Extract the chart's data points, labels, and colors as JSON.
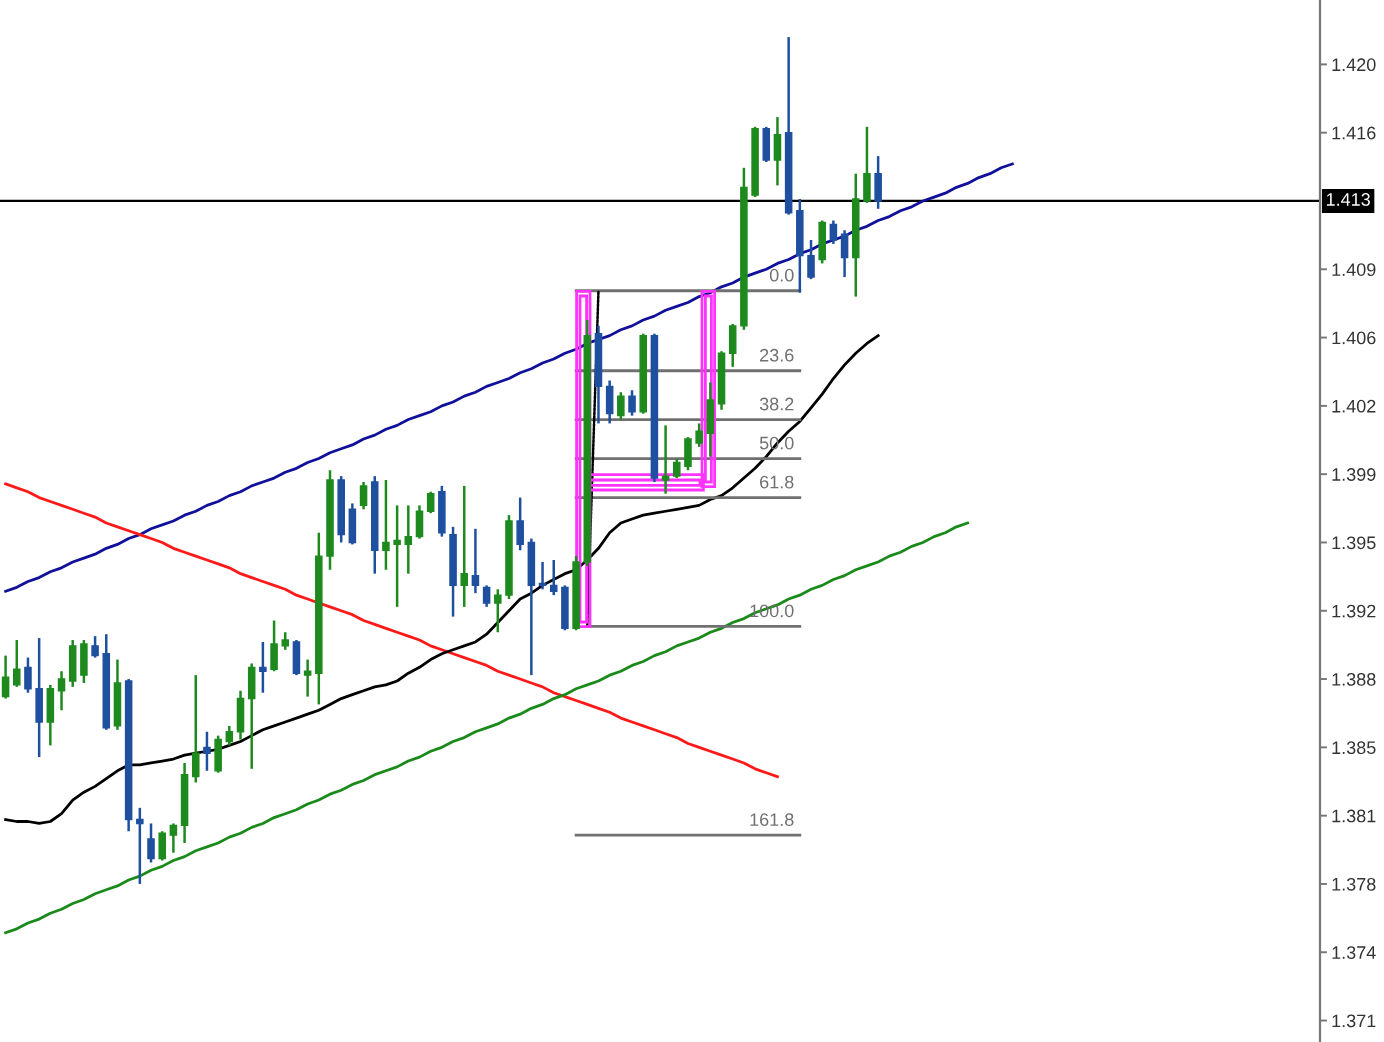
{
  "chart_data": {
    "type": "candlestick",
    "categories": [
      null,
      null,
      null,
      null,
      null,
      null,
      null,
      null,
      null,
      null,
      null,
      null,
      null,
      null,
      null,
      null,
      null,
      null,
      null,
      null,
      null,
      null,
      null,
      null,
      null,
      null,
      null,
      null,
      null,
      null,
      null,
      null,
      null,
      null,
      null,
      null,
      null,
      null,
      null,
      null,
      null,
      null,
      null,
      null,
      null,
      null,
      null,
      null,
      null,
      null,
      null,
      null,
      null,
      null,
      null,
      null,
      null,
      null,
      null,
      null,
      null,
      null,
      null,
      null,
      null,
      null,
      null,
      null,
      null,
      null,
      null,
      null,
      null,
      null,
      null,
      null,
      null,
      null,
      null,
      null,
      null,
      null,
      null,
      null,
      null,
      null,
      null,
      null,
      null,
      null,
      null,
      null,
      null,
      null,
      null,
      null,
      null,
      null,
      null,
      null,
      null,
      null,
      null,
      null,
      null,
      null,
      null,
      null,
      null,
      null,
      null,
      null,
      null,
      null,
      null,
      null,
      null,
      null
    ],
    "ohlc": [
      [
        1.3876,
        1.3897,
        1.3875,
        1.3886
      ],
      [
        1.3882,
        1.3905,
        1.3881,
        1.389
      ],
      [
        1.3891,
        1.3896,
        1.3878,
        1.388
      ],
      [
        1.388,
        1.3906,
        1.3845,
        1.3863
      ],
      [
        1.3863,
        1.3882,
        1.3851,
        1.388
      ],
      [
        1.3879,
        1.3889,
        1.3869,
        1.3885
      ],
      [
        1.3884,
        1.3905,
        1.3881,
        1.3902
      ],
      [
        1.3887,
        1.3905,
        1.3883,
        1.3903
      ],
      [
        1.3902,
        1.3907,
        1.3896,
        1.3897
      ],
      [
        1.3898,
        1.3908,
        1.3859,
        1.386
      ],
      [
        1.3861,
        1.3895,
        1.3859,
        1.3883
      ],
      [
        1.3884,
        1.3885,
        1.3807,
        1.3813
      ],
      [
        1.3813,
        1.3819,
        1.378,
        1.3811
      ],
      [
        1.3803,
        1.3811,
        1.3791,
        1.3793
      ],
      [
        1.3793,
        1.3807,
        1.3792,
        1.3806
      ],
      [
        1.3805,
        1.3811,
        1.3796,
        1.381
      ],
      [
        1.381,
        1.3842,
        1.3801,
        1.3836
      ],
      [
        1.3835,
        1.3887,
        1.3832,
        1.3847
      ],
      [
        1.385,
        1.3858,
        1.3838,
        1.3847
      ],
      [
        1.3838,
        1.3856,
        1.3837,
        1.3854
      ],
      [
        1.3853,
        1.3861,
        1.3851,
        1.3858
      ],
      [
        1.3858,
        1.3879,
        1.3854,
        1.3875
      ],
      [
        1.3875,
        1.3893,
        1.3839,
        1.3891
      ],
      [
        1.3891,
        1.3904,
        1.3878,
        1.3889
      ],
      [
        1.389,
        1.3915,
        1.3889,
        1.3903
      ],
      [
        1.3902,
        1.3909,
        1.39,
        1.3905
      ],
      [
        1.3904,
        1.3905,
        1.3887,
        1.3888
      ],
      [
        1.3887,
        1.3895,
        1.3876,
        1.3889
      ],
      [
        1.3888,
        1.396,
        1.3872,
        1.3948
      ],
      [
        1.3948,
        1.3992,
        1.3941,
        1.3987
      ],
      [
        1.3987,
        1.3989,
        1.3955,
        1.3959
      ],
      [
        1.3972,
        1.3975,
        1.3954,
        1.3955
      ],
      [
        1.3974,
        1.3986,
        1.3972,
        1.3984
      ],
      [
        1.3986,
        1.3989,
        1.3939,
        1.3951
      ],
      [
        1.3951,
        1.3987,
        1.3941,
        1.3955
      ],
      [
        1.3954,
        1.3974,
        1.3922,
        1.3956
      ],
      [
        1.3954,
        1.3974,
        1.3939,
        1.3958
      ],
      [
        1.3958,
        1.3974,
        1.3957,
        1.3971
      ],
      [
        1.3971,
        1.3981,
        1.397,
        1.398
      ],
      [
        1.3981,
        1.3984,
        1.3958,
        1.396
      ],
      [
        1.3959,
        1.3963,
        1.3917,
        1.3933
      ],
      [
        1.3933,
        1.3984,
        1.3922,
        1.3939
      ],
      [
        1.3938,
        1.3962,
        1.3929,
        1.3933
      ],
      [
        1.3932,
        1.3933,
        1.3922,
        1.3924
      ],
      [
        1.3924,
        1.3931,
        1.3909,
        1.3928
      ],
      [
        1.3928,
        1.3969,
        1.3926,
        1.3966
      ],
      [
        1.3966,
        1.3978,
        1.3951,
        1.3954
      ],
      [
        1.3955,
        1.3957,
        1.3887,
        1.3933
      ],
      [
        1.3934,
        1.3945,
        1.3931,
        1.3933
      ],
      [
        1.3933,
        1.3946,
        1.3928,
        1.393
      ],
      [
        1.3932,
        1.3933,
        1.391,
        1.3911
      ],
      [
        1.3911,
        1.3948,
        1.391,
        1.3945
      ],
      [
        1.3945,
        1.4069,
        1.3943,
        1.4061
      ],
      [
        1.4062,
        1.4066,
        1.4016,
        1.4035
      ],
      [
        1.4035,
        1.4038,
        1.4016,
        1.4021
      ],
      [
        1.402,
        1.4032,
        1.4018,
        1.403
      ],
      [
        1.403,
        1.4033,
        1.402,
        1.4022
      ],
      [
        1.4022,
        1.4062,
        1.4021,
        1.4061
      ],
      [
        1.4061,
        1.4062,
        1.3986,
        1.3988
      ],
      [
        1.3987,
        1.4015,
        1.398,
        1.3989
      ],
      [
        1.3989,
        1.3998,
        1.3988,
        1.3996
      ],
      [
        1.3994,
        1.4009,
        1.3992,
        1.4008
      ],
      [
        1.4006,
        1.4016,
        1.4004,
        1.4012
      ],
      [
        1.4011,
        1.4037,
        1.3999,
        1.4028
      ],
      [
        1.4026,
        1.4053,
        1.4023,
        1.4052
      ],
      [
        1.4052,
        1.4067,
        1.4045,
        1.4066
      ],
      [
        1.4066,
        1.4147,
        1.4064,
        1.4137
      ],
      [
        1.4133,
        1.4168,
        1.4132,
        1.4167
      ],
      [
        1.4167,
        1.4168,
        1.415,
        1.4151
      ],
      [
        1.4151,
        1.4173,
        1.4138,
        1.4164
      ],
      [
        1.4165,
        1.4214,
        1.4123,
        1.4124
      ],
      [
        1.4125,
        1.4131,
        1.4083,
        1.4102
      ],
      [
        1.4102,
        1.411,
        1.409,
        1.4091
      ],
      [
        1.41,
        1.412,
        1.4098,
        1.4119
      ],
      [
        1.4118,
        1.412,
        1.4108,
        1.411
      ],
      [
        1.4113,
        1.4115,
        1.4091,
        1.4101
      ],
      [
        1.4101,
        1.4144,
        1.4081,
        1.4131
      ],
      [
        1.413,
        1.4168,
        1.4129,
        1.4144
      ],
      [
        1.4144,
        1.4153,
        1.4126,
        1.413
      ],
      null,
      null,
      null,
      null,
      null,
      null,
      null,
      null,
      null,
      null,
      null,
      null,
      null,
      null,
      null,
      null,
      null,
      null,
      null,
      null,
      null,
      null,
      null,
      null,
      null,
      null,
      null,
      null,
      null,
      null,
      null,
      null,
      null,
      null,
      null,
      null,
      null,
      null,
      null
    ],
    "colors": [
      "#1e8a1e",
      "#1e8a1e",
      "#1f4f9f",
      "#1f4f9f",
      "#1e8a1e",
      "#1e8a1e",
      "#1e8a1e",
      "#1e8a1e",
      "#1f4f9f",
      "#1f4f9f",
      "#1e8a1e",
      "#1f4f9f",
      "#1f4f9f",
      "#1f4f9f",
      "#1e8a1e",
      "#1e8a1e",
      "#1e8a1e",
      "#1e8a1e",
      "#1f4f9f",
      "#1e8a1e",
      "#1e8a1e",
      "#1e8a1e",
      "#1e8a1e",
      "#1f4f9f",
      "#1e8a1e",
      "#1e8a1e",
      "#1f4f9f",
      "#1e8a1e",
      "#1e8a1e",
      "#1e8a1e",
      "#1f4f9f",
      "#1f4f9f",
      "#1e8a1e",
      "#1f4f9f",
      "#1e8a1e",
      "#1e8a1e",
      "#1e8a1e",
      "#1e8a1e",
      "#1e8a1e",
      "#1f4f9f",
      "#1f4f9f",
      "#1e8a1e",
      "#1f4f9f",
      "#1f4f9f",
      "#1e8a1e",
      "#1e8a1e",
      "#1f4f9f",
      "#1f4f9f",
      "#1f4f9f",
      "#1f4f9f",
      "#1f4f9f",
      "#1e8a1e",
      "#1e8a1e",
      "#1f4f9f",
      "#1f4f9f",
      "#1e8a1e",
      "#1f4f9f",
      "#1e8a1e",
      "#1f4f9f",
      "#1e8a1e",
      "#1e8a1e",
      "#1e8a1e",
      "#1e8a1e",
      "#1e8a1e",
      "#1e8a1e",
      "#1e8a1e",
      "#1e8a1e",
      "#1e8a1e",
      "#1f4f9f",
      "#1e8a1e",
      "#1f4f9f",
      "#1f4f9f",
      "#1f4f9f",
      "#1e8a1e",
      "#1f4f9f",
      "#1f4f9f",
      "#1e8a1e",
      "#1e8a1e",
      "#1f4f9f",
      null,
      null,
      null,
      null,
      null,
      null,
      null,
      null,
      null,
      null,
      null,
      null,
      null,
      null,
      null,
      null,
      null,
      null,
      null,
      null,
      null,
      null,
      null,
      null,
      null,
      null,
      null,
      null,
      null,
      null,
      null,
      null,
      null,
      null,
      null,
      null,
      null,
      null,
      null
    ],
    "ylim": [
      1.3699,
      1.4233
    ],
    "yticks": [
      {
        "value": 1.371,
        "label": "1.371"
      },
      {
        "value": 1.3745,
        "label": "1.374"
      },
      {
        "value": 1.378,
        "label": "1.378"
      },
      {
        "value": 1.3815,
        "label": "1.381"
      },
      {
        "value": 1.385,
        "label": "1.385"
      },
      {
        "value": 1.3885,
        "label": "1.388"
      },
      {
        "value": 1.392,
        "label": "1.392"
      },
      {
        "value": 1.3955,
        "label": "1.395"
      },
      {
        "value": 1.399,
        "label": "1.399"
      },
      {
        "value": 1.4025,
        "label": "1.402"
      },
      {
        "value": 1.406,
        "label": "1.406"
      },
      {
        "value": 1.4095,
        "label": "1.409"
      },
      {
        "value": 1.4165,
        "label": "1.416"
      },
      {
        "value": 1.42,
        "label": "1.420"
      }
    ],
    "tick_labels": "y",
    "ref_lines": [
      {
        "axis": "y",
        "value": 1.413,
        "label": "1.413",
        "color": "#000000"
      }
    ],
    "series": [
      {
        "type": "line",
        "color": "#10109a",
        "values": [
          1.393,
          1.3932,
          1.3935,
          1.3937,
          1.394,
          1.3942,
          1.3945,
          1.3947,
          1.3949,
          1.3952,
          1.3954,
          1.3957,
          1.3959,
          1.3962,
          1.3964,
          1.3966,
          1.3969,
          1.3971,
          1.3974,
          1.3976,
          1.3979,
          1.3981,
          1.3984,
          1.3986,
          1.3988,
          1.3991,
          1.3993,
          1.3996,
          1.3998,
          1.4001,
          1.4003,
          1.4005,
          1.4008,
          1.401,
          1.4013,
          1.4015,
          1.4018,
          1.402,
          1.4022,
          1.4025,
          1.4027,
          1.403,
          1.4032,
          1.4035,
          1.4037,
          1.4039,
          1.4042,
          1.4044,
          1.4047,
          1.4049,
          1.4052,
          1.4054,
          1.4057,
          1.4059,
          1.4061,
          1.4064,
          1.4066,
          1.4069,
          1.4071,
          1.4074,
          1.4076,
          1.4078,
          1.4081,
          1.4083,
          1.4086,
          1.4088,
          1.4091,
          1.4093,
          1.4095,
          1.4098,
          1.41,
          1.4103,
          1.4105,
          1.4108,
          1.411,
          1.4112,
          1.4115,
          1.4117,
          1.412,
          1.4122,
          1.4125,
          1.4127,
          1.413,
          1.4132,
          1.4134,
          1.4137,
          1.4139,
          1.4142,
          1.4144,
          1.4147,
          1.4149,
          null,
          null,
          null,
          null,
          null,
          null,
          null,
          null,
          null,
          null,
          null,
          null,
          null,
          null,
          null,
          null,
          null,
          null,
          null,
          null,
          null,
          null,
          null,
          null,
          null,
          null,
          null
        ]
      },
      {
        "type": "line",
        "color": "#ff1a1a",
        "values": [
          1.3985,
          1.3983,
          1.3981,
          1.3978,
          1.3976,
          1.3974,
          1.3972,
          1.397,
          1.3968,
          1.3965,
          1.3963,
          1.3961,
          1.3959,
          1.3957,
          1.3955,
          1.3952,
          1.395,
          1.3948,
          1.3946,
          1.3944,
          1.3942,
          1.3939,
          1.3937,
          1.3935,
          1.3933,
          1.3931,
          1.3928,
          1.3926,
          1.3924,
          1.3922,
          1.392,
          1.3918,
          1.3915,
          1.3913,
          1.3911,
          1.3909,
          1.3907,
          1.3905,
          1.3902,
          1.39,
          1.3898,
          1.3896,
          1.3894,
          1.3892,
          1.3889,
          1.3887,
          1.3885,
          1.3883,
          1.3881,
          1.3878,
          1.3876,
          1.3874,
          1.3872,
          1.387,
          1.3868,
          1.3865,
          1.3863,
          1.3861,
          1.3859,
          1.3857,
          1.3855,
          1.3852,
          1.385,
          1.3848,
          1.3846,
          1.3844,
          1.3842,
          1.3839,
          1.3837,
          1.3835,
          null,
          null,
          null,
          null,
          null,
          null,
          null,
          null,
          null,
          null,
          null,
          null,
          null,
          null,
          null,
          null,
          null,
          null,
          null,
          null,
          null,
          null,
          null,
          null,
          null,
          null,
          null,
          null,
          null,
          null,
          null,
          null,
          null,
          null,
          null,
          null,
          null,
          null,
          null,
          null,
          null,
          null,
          null,
          null,
          null,
          null,
          null,
          null
        ]
      },
      {
        "type": "line",
        "color": "#1a8a1a",
        "values": [
          1.3755,
          1.3757,
          1.376,
          1.3762,
          1.3765,
          1.3767,
          1.377,
          1.3772,
          1.3775,
          1.3777,
          1.3779,
          1.3782,
          1.3784,
          1.3787,
          1.3789,
          1.3792,
          1.3794,
          1.3797,
          1.3799,
          1.3801,
          1.3804,
          1.3806,
          1.3809,
          1.3811,
          1.3814,
          1.3816,
          1.3818,
          1.3821,
          1.3823,
          1.3826,
          1.3828,
          1.3831,
          1.3833,
          1.3836,
          1.3838,
          1.384,
          1.3843,
          1.3845,
          1.3848,
          1.385,
          1.3853,
          1.3855,
          1.3858,
          1.386,
          1.3862,
          1.3865,
          1.3867,
          1.387,
          1.3872,
          1.3875,
          1.3877,
          1.388,
          1.3882,
          1.3884,
          1.3887,
          1.3889,
          1.3892,
          1.3894,
          1.3897,
          1.3899,
          1.3902,
          1.3904,
          1.3906,
          1.3909,
          1.3911,
          1.3914,
          1.3916,
          1.3919,
          1.3921,
          1.3923,
          1.3926,
          1.3928,
          1.3931,
          1.3933,
          1.3936,
          1.3938,
          1.3941,
          1.3943,
          1.3945,
          1.3948,
          1.395,
          1.3953,
          1.3955,
          1.3958,
          1.396,
          1.3963,
          1.3965,
          null,
          null,
          null,
          null,
          null,
          null,
          null,
          null,
          null,
          null,
          null,
          null,
          null,
          null,
          null,
          null,
          null,
          null,
          null,
          null,
          null,
          null,
          null,
          null,
          null,
          null,
          null,
          null,
          null,
          null,
          null
        ]
      },
      {
        "type": "line",
        "color": "#000000",
        "values": [
          1.3813,
          1.3812,
          1.3812,
          1.3811,
          1.3812,
          1.3816,
          1.3823,
          1.3827,
          1.383,
          1.3834,
          1.3838,
          1.3841,
          1.3841,
          1.3842,
          1.3843,
          1.3844,
          1.3846,
          1.3847,
          1.3848,
          1.3849,
          1.3851,
          1.3853,
          1.3856,
          1.3859,
          1.3861,
          1.3863,
          1.3865,
          1.3867,
          1.3869,
          1.3872,
          1.3875,
          1.3877,
          1.3879,
          1.3881,
          1.3882,
          1.3884,
          1.3888,
          1.3891,
          1.3895,
          1.3898,
          1.39,
          1.3902,
          1.3904,
          1.3908,
          1.3914,
          1.392,
          1.3926,
          1.3929,
          1.3933,
          1.3936,
          1.3939,
          1.3941,
          1.3946,
          1.3952,
          1.396,
          1.3965,
          1.3967,
          1.3969,
          1.397,
          1.3971,
          1.3972,
          1.3973,
          1.3974,
          1.3977,
          1.3979,
          1.3983,
          1.3988,
          1.3993,
          1.3999,
          1.4006,
          1.4012,
          1.4017,
          1.4024,
          1.4031,
          1.4039,
          1.4046,
          1.4052,
          1.4057,
          1.4061,
          null,
          null,
          null,
          null,
          null,
          null,
          null,
          null,
          null,
          null,
          null,
          null,
          null,
          null,
          null,
          null,
          null,
          null,
          null,
          null,
          null,
          null,
          null,
          null,
          null,
          null,
          null,
          null,
          null,
          null,
          null,
          null,
          null,
          null,
          null,
          null,
          null,
          null,
          null
        ]
      },
      {
        "type": "line",
        "name": "0.0",
        "color": "#707070",
        "values": [
          null,
          null,
          null,
          null,
          null,
          null,
          null,
          null,
          null,
          null,
          null,
          null,
          null,
          null,
          null,
          null,
          null,
          null,
          null,
          null,
          null,
          null,
          null,
          null,
          null,
          null,
          null,
          null,
          null,
          null,
          null,
          null,
          null,
          null,
          null,
          null,
          null,
          null,
          null,
          null,
          null,
          null,
          null,
          null,
          null,
          null,
          null,
          null,
          null,
          null,
          null,
          1.4084,
          1.4084,
          1.4084,
          1.4084,
          1.4084,
          1.4084,
          1.4084,
          1.4084,
          1.4084,
          1.4084,
          1.4084,
          1.4084,
          1.4084,
          1.4084,
          1.4084,
          1.4084,
          1.4084,
          1.4084,
          1.4084,
          1.4084,
          1.4084,
          null,
          null,
          null,
          null,
          null,
          null,
          null,
          null,
          null,
          null,
          null,
          null,
          null,
          null,
          null,
          null,
          null,
          null,
          null,
          null,
          null,
          null,
          null,
          null,
          null,
          null,
          null,
          null,
          null,
          null,
          null,
          null,
          null,
          null,
          null,
          null,
          null,
          null,
          null,
          null,
          null,
          null,
          null,
          null,
          null,
          null
        ]
      },
      {
        "type": "line",
        "name": "23.6",
        "color": "#707070",
        "values": [
          null,
          null,
          null,
          null,
          null,
          null,
          null,
          null,
          null,
          null,
          null,
          null,
          null,
          null,
          null,
          null,
          null,
          null,
          null,
          null,
          null,
          null,
          null,
          null,
          null,
          null,
          null,
          null,
          null,
          null,
          null,
          null,
          null,
          null,
          null,
          null,
          null,
          null,
          null,
          null,
          null,
          null,
          null,
          null,
          null,
          null,
          null,
          null,
          null,
          null,
          null,
          1.4043,
          1.4043,
          1.4043,
          1.4043,
          1.4043,
          1.4043,
          1.4043,
          1.4043,
          1.4043,
          1.4043,
          1.4043,
          1.4043,
          1.4043,
          1.4043,
          1.4043,
          1.4043,
          1.4043,
          1.4043,
          1.4043,
          1.4043,
          1.4043,
          null,
          null,
          null,
          null,
          null,
          null,
          null,
          null,
          null,
          null,
          null,
          null,
          null,
          null,
          null,
          null,
          null,
          null,
          null,
          null,
          null,
          null,
          null,
          null,
          null,
          null,
          null,
          null,
          null,
          null,
          null,
          null,
          null,
          null,
          null,
          null,
          null,
          null,
          null,
          null,
          null,
          null,
          null,
          null,
          null,
          null
        ]
      },
      {
        "type": "line",
        "name": "38.2",
        "color": "#707070",
        "values": [
          null,
          null,
          null,
          null,
          null,
          null,
          null,
          null,
          null,
          null,
          null,
          null,
          null,
          null,
          null,
          null,
          null,
          null,
          null,
          null,
          null,
          null,
          null,
          null,
          null,
          null,
          null,
          null,
          null,
          null,
          null,
          null,
          null,
          null,
          null,
          null,
          null,
          null,
          null,
          null,
          null,
          null,
          null,
          null,
          null,
          null,
          null,
          null,
          null,
          null,
          null,
          1.4018,
          1.4018,
          1.4018,
          1.4018,
          1.4018,
          1.4018,
          1.4018,
          1.4018,
          1.4018,
          1.4018,
          1.4018,
          1.4018,
          1.4018,
          1.4018,
          1.4018,
          1.4018,
          1.4018,
          1.4018,
          1.4018,
          1.4018,
          1.4018,
          null,
          null,
          null,
          null,
          null,
          null,
          null,
          null,
          null,
          null,
          null,
          null,
          null,
          null,
          null,
          null,
          null,
          null,
          null,
          null,
          null,
          null,
          null,
          null,
          null,
          null,
          null,
          null,
          null,
          null,
          null,
          null,
          null,
          null,
          null,
          null,
          null,
          null,
          null,
          null,
          null,
          null,
          null,
          null,
          null,
          null
        ]
      },
      {
        "type": "line",
        "name": "50.0",
        "color": "#707070",
        "values": [
          null,
          null,
          null,
          null,
          null,
          null,
          null,
          null,
          null,
          null,
          null,
          null,
          null,
          null,
          null,
          null,
          null,
          null,
          null,
          null,
          null,
          null,
          null,
          null,
          null,
          null,
          null,
          null,
          null,
          null,
          null,
          null,
          null,
          null,
          null,
          null,
          null,
          null,
          null,
          null,
          null,
          null,
          null,
          null,
          null,
          null,
          null,
          null,
          null,
          null,
          null,
          1.3998,
          1.3998,
          1.3998,
          1.3998,
          1.3998,
          1.3998,
          1.3998,
          1.3998,
          1.3998,
          1.3998,
          1.3998,
          1.3998,
          1.3998,
          1.3998,
          1.3998,
          1.3998,
          1.3998,
          1.3998,
          1.3998,
          1.3998,
          1.3998,
          null,
          null,
          null,
          null,
          null,
          null,
          null,
          null,
          null,
          null,
          null,
          null,
          null,
          null,
          null,
          null,
          null,
          null,
          null,
          null,
          null,
          null,
          null,
          null,
          null,
          null,
          null,
          null,
          null,
          null,
          null,
          null,
          null,
          null,
          null,
          null,
          null,
          null,
          null,
          null,
          null,
          null,
          null,
          null,
          null,
          null
        ]
      },
      {
        "type": "line",
        "name": "61.8",
        "color": "#707070",
        "values": [
          null,
          null,
          null,
          null,
          null,
          null,
          null,
          null,
          null,
          null,
          null,
          null,
          null,
          null,
          null,
          null,
          null,
          null,
          null,
          null,
          null,
          null,
          null,
          null,
          null,
          null,
          null,
          null,
          null,
          null,
          null,
          null,
          null,
          null,
          null,
          null,
          null,
          null,
          null,
          null,
          null,
          null,
          null,
          null,
          null,
          null,
          null,
          null,
          null,
          null,
          null,
          1.3978,
          1.3978,
          1.3978,
          1.3978,
          1.3978,
          1.3978,
          1.3978,
          1.3978,
          1.3978,
          1.3978,
          1.3978,
          1.3978,
          1.3978,
          1.3978,
          1.3978,
          1.3978,
          1.3978,
          1.3978,
          1.3978,
          1.3978,
          1.3978,
          null,
          null,
          null,
          null,
          null,
          null,
          null,
          null,
          null,
          null,
          null,
          null,
          null,
          null,
          null,
          null,
          null,
          null,
          null,
          null,
          null,
          null,
          null,
          null,
          null,
          null,
          null,
          null,
          null,
          null,
          null,
          null,
          null,
          null,
          null,
          null,
          null,
          null,
          null,
          null,
          null,
          null,
          null,
          null,
          null,
          null
        ]
      },
      {
        "type": "line",
        "name": "100.0",
        "color": "#707070",
        "values": [
          null,
          null,
          null,
          null,
          null,
          null,
          null,
          null,
          null,
          null,
          null,
          null,
          null,
          null,
          null,
          null,
          null,
          null,
          null,
          null,
          null,
          null,
          null,
          null,
          null,
          null,
          null,
          null,
          null,
          null,
          null,
          null,
          null,
          null,
          null,
          null,
          null,
          null,
          null,
          null,
          null,
          null,
          null,
          null,
          null,
          null,
          null,
          null,
          null,
          null,
          null,
          null,
          1.3912,
          1.3912,
          1.3912,
          1.3912,
          1.3912,
          1.3912,
          1.3912,
          1.3912,
          1.3912,
          1.3912,
          1.3912,
          1.3912,
          1.3912,
          1.3912,
          1.3912,
          1.3912,
          1.3912,
          1.3912,
          1.3912,
          1.3912,
          null,
          null,
          null,
          null,
          null,
          null,
          null,
          null,
          null,
          null,
          null,
          null,
          null,
          null,
          null,
          null,
          null,
          null,
          null,
          null,
          null,
          null,
          null,
          null,
          null,
          null,
          null,
          null,
          null,
          null,
          null,
          null,
          null,
          null,
          null,
          null,
          null,
          null,
          null,
          null,
          null,
          null,
          null,
          null,
          null,
          null
        ]
      },
      {
        "type": "line",
        "name": "161.8",
        "color": "#707070",
        "values": [
          null,
          null,
          null,
          null,
          null,
          null,
          null,
          null,
          null,
          null,
          null,
          null,
          null,
          null,
          null,
          null,
          null,
          null,
          null,
          null,
          null,
          null,
          null,
          null,
          null,
          null,
          null,
          null,
          null,
          null,
          null,
          null,
          null,
          null,
          null,
          null,
          null,
          null,
          null,
          null,
          null,
          null,
          null,
          null,
          null,
          null,
          null,
          null,
          null,
          null,
          null,
          1.3805,
          1.3805,
          1.3805,
          1.3805,
          1.3805,
          1.3805,
          1.3805,
          1.3805,
          1.3805,
          1.3805,
          1.3805,
          1.3805,
          1.3805,
          1.3805,
          1.3805,
          1.3805,
          1.3805,
          1.3805,
          1.3805,
          1.3805,
          1.3805,
          null,
          null,
          null,
          null,
          null,
          null,
          null,
          null,
          null,
          null,
          null,
          null,
          null,
          null,
          null,
          null,
          null,
          null,
          null,
          null,
          null,
          null,
          null,
          null,
          null,
          null,
          null,
          null,
          null,
          null,
          null,
          null,
          null,
          null,
          null,
          null,
          null,
          null,
          null,
          null,
          null,
          null,
          null,
          null,
          null,
          null
        ]
      },
      {
        "type": "line",
        "color": "#000000",
        "line_style": "dotted",
        "values": [
          null,
          null,
          null,
          null,
          null,
          null,
          null,
          null,
          null,
          null,
          null,
          null,
          null,
          null,
          null,
          null,
          null,
          null,
          null,
          null,
          null,
          null,
          null,
          null,
          null,
          null,
          null,
          null,
          null,
          null,
          null,
          null,
          null,
          null,
          null,
          null,
          null,
          null,
          null,
          null,
          null,
          null,
          null,
          null,
          null,
          null,
          null,
          null,
          null,
          null,
          null,
          null,
          1.3912,
          1.4084,
          null,
          null,
          null,
          null,
          null,
          null,
          null,
          null,
          null,
          null,
          null,
          null,
          null,
          null,
          null,
          null,
          null,
          null,
          null,
          null,
          null,
          null,
          null,
          null,
          null,
          null,
          null,
          null,
          null,
          null,
          null,
          null,
          null,
          null,
          null,
          null,
          null,
          null,
          null,
          null,
          null,
          null,
          null,
          null,
          null,
          null,
          null,
          null,
          null,
          null,
          null,
          null,
          null,
          null,
          null,
          null,
          null,
          null,
          null,
          null,
          null,
          null,
          null,
          null
        ]
      }
    ]
  }
}
